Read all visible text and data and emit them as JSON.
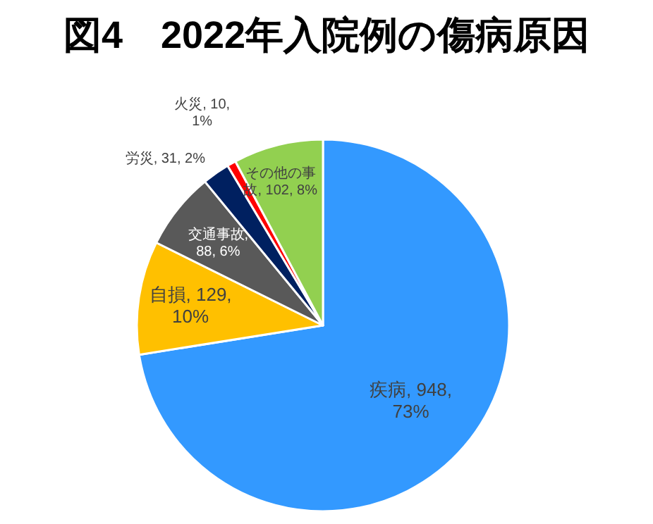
{
  "chart_data": {
    "type": "pie",
    "title": "図4　2022年入院例の傷病原因",
    "categories": [
      "疾病, 948, 73%",
      "自損, 129, 10%",
      "交通事故, 88, 6%",
      "労災, 31, 2%",
      "火災, 10, 1%",
      "その他の事故, 102, 8%"
    ],
    "values": [
      948,
      129,
      88,
      31,
      10,
      102
    ],
    "colors": [
      "#3399ff",
      "#ffc000",
      "#595959",
      "#002060",
      "#ff0000",
      "#92d050"
    ],
    "legend": false
  }
}
